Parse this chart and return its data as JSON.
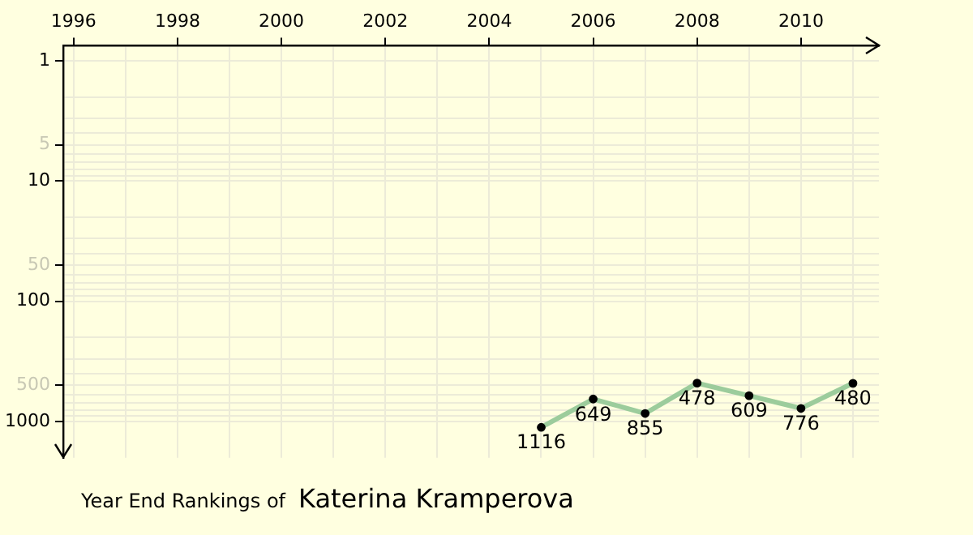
{
  "chart_data": {
    "type": "line",
    "title": "Year End Rankings of",
    "subtitle": "Katerina Kramperova",
    "x": [
      2005,
      2006,
      2007,
      2008,
      2009,
      2010,
      2011
    ],
    "series": [
      {
        "color": "#9ccc9c",
        "values": [
          1116,
          649,
          855,
          478,
          609,
          776,
          480
        ]
      }
    ],
    "xlim": [
      1995.8,
      2011.5
    ],
    "xticks": [
      1996,
      {
        "value": 1997,
        "label": null
      },
      1998,
      {
        "value": 1999,
        "label": null
      },
      2000,
      {
        "value": 2001,
        "label": null
      },
      2002,
      {
        "value": 2003,
        "label": null
      },
      2004,
      {
        "value": 2005,
        "label": null
      },
      2006,
      {
        "value": 2007,
        "label": null
      },
      2008,
      {
        "value": 2009,
        "label": null
      },
      2010,
      {
        "value": 2011,
        "label": null
      }
    ],
    "ylim": [
      2000,
      0.75
    ],
    "yticks": [
      1,
      {
        "value": 2,
        "label": null
      },
      {
        "value": 3,
        "label": null
      },
      {
        "value": 4,
        "label": null
      },
      5,
      {
        "value": 6,
        "label": null
      },
      {
        "value": 7,
        "label": null
      },
      {
        "value": 8,
        "label": null
      },
      {
        "value": 9,
        "label": null
      },
      10,
      {
        "value": 20,
        "label": null
      },
      {
        "value": 30,
        "label": null
      },
      {
        "value": 40,
        "label": null
      },
      50,
      {
        "value": 60,
        "label": null
      },
      {
        "value": 70,
        "label": null
      },
      {
        "value": 80,
        "label": null
      },
      {
        "value": 90,
        "label": null
      },
      100,
      {
        "value": 200,
        "label": null
      },
      {
        "value": 300,
        "label": null
      },
      {
        "value": 400,
        "label": null
      },
      500,
      {
        "value": 600,
        "label": null
      },
      {
        "value": 700,
        "label": null
      },
      {
        "value": 800,
        "label": null
      },
      {
        "value": 900,
        "label": null
      },
      1000
    ],
    "log": "y",
    "grid": true,
    "legend": false,
    "marker": "circle",
    "line_style": "solid",
    "data_labels": true
  }
}
